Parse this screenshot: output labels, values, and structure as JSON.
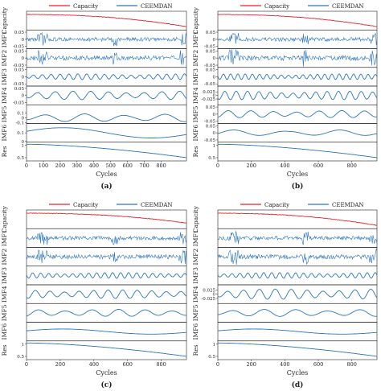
{
  "legend": {
    "capacity_label": "Capacity",
    "ceemdan_label": "CEEMDAN"
  },
  "colors": {
    "capacity": "#e4252b",
    "imf": "#2a74c0",
    "axis": "#222222",
    "grid": "#cccccc"
  },
  "chart_data": [
    {
      "type": "line",
      "panel_label": "(a)",
      "xlabel": "Cycles",
      "x_range": [
        0,
        950
      ],
      "x_ticks": [
        0,
        100,
        200,
        300,
        400,
        500,
        600,
        700,
        800
      ],
      "legend": [
        "Capacity",
        "CEEMDAN"
      ],
      "rows": [
        {
          "label": "Capacity",
          "ylim": [
            0.4,
            1.1
          ],
          "ticks": [],
          "kind": "capacity",
          "start": 1.0,
          "end": 0.5
        },
        {
          "label": "IMF1",
          "ylim": [
            -0.06,
            0.06
          ],
          "ticks": [
            0.05,
            0.0,
            -0.05
          ],
          "kind": "noise",
          "amp": 0.03
        },
        {
          "label": "IMF2",
          "ylim": [
            -0.06,
            0.06
          ],
          "ticks": [
            0.05,
            0.0,
            -0.05
          ],
          "kind": "noise",
          "amp": 0.035
        },
        {
          "label": "IMF3",
          "ylim": [
            -0.06,
            0.06
          ],
          "ticks": [
            0.05,
            0.0,
            -0.05
          ],
          "kind": "wave",
          "amp": 0.02,
          "freq": 18
        },
        {
          "label": "IMF4",
          "ylim": [
            -0.06,
            0.06
          ],
          "ticks": [
            0.05,
            0.0,
            -0.05
          ],
          "kind": "wave",
          "amp": 0.03,
          "freq": 9
        },
        {
          "label": "IMF5",
          "ylim": [
            -0.1,
            0.25
          ],
          "ticks": [
            0.1,
            0.0,
            -0.1
          ],
          "kind": "wave",
          "amp": 0.08,
          "freq": 4
        },
        {
          "label": "IMF6",
          "ylim": [
            0.0,
            0.2
          ],
          "ticks": [
            0.1,
            0.0
          ],
          "kind": "hump",
          "amp": 0.1
        },
        {
          "label": "Res",
          "ylim": [
            0.4,
            1.1
          ],
          "ticks": [
            1.0,
            0.5
          ],
          "kind": "res",
          "start": 1.05,
          "end": 0.5
        }
      ]
    },
    {
      "type": "line",
      "panel_label": "(b)",
      "xlabel": "Cycles",
      "x_range": [
        0,
        950
      ],
      "x_ticks": [
        0,
        200,
        400,
        600,
        800
      ],
      "legend": [
        "Capacity",
        "CEEMDAN"
      ],
      "rows": [
        {
          "label": "Capacity",
          "ylim": [
            0.4,
            1.1
          ],
          "ticks": [],
          "kind": "capacity",
          "start": 1.0,
          "end": 0.5
        },
        {
          "label": "IMF1",
          "ylim": [
            -0.06,
            0.06
          ],
          "ticks": [
            0.05,
            0.0,
            -0.05
          ],
          "kind": "noise",
          "amp": 0.03
        },
        {
          "label": "IMF2",
          "ylim": [
            -0.06,
            0.06
          ],
          "ticks": [
            0.05,
            0.0,
            -0.05
          ],
          "kind": "noise",
          "amp": 0.04
        },
        {
          "label": "IMF3",
          "ylim": [
            -0.06,
            0.06
          ],
          "ticks": [
            0.05,
            0.0,
            -0.05
          ],
          "kind": "wave",
          "amp": 0.02,
          "freq": 22
        },
        {
          "label": "IMF4",
          "ylim": [
            -0.06,
            0.06
          ],
          "ticks": [
            0.025,
            0.0,
            -0.025
          ],
          "kind": "wave",
          "amp": 0.03,
          "freq": 14
        },
        {
          "label": "IMF5",
          "ylim": [
            -0.06,
            0.06
          ],
          "ticks": [
            0.05,
            0.0,
            -0.05
          ],
          "kind": "wave",
          "amp": 0.025,
          "freq": 7
        },
        {
          "label": "IMF6",
          "ylim": [
            -0.06,
            0.06
          ],
          "ticks": [
            0.05,
            0.0,
            -0.05
          ],
          "kind": "wave",
          "amp": 0.02,
          "freq": 3
        },
        {
          "label": "Res",
          "ylim": [
            0.4,
            1.1
          ],
          "ticks": [
            1.0,
            0.5
          ],
          "kind": "res",
          "start": 1.05,
          "end": 0.5
        }
      ]
    },
    {
      "type": "line",
      "panel_label": "(c)",
      "xlabel": "Cycles",
      "x_range": [
        0,
        950
      ],
      "x_ticks": [
        0,
        200,
        400,
        600,
        800
      ],
      "legend": [
        "Capacity",
        "CEEMDAN"
      ],
      "rows": [
        {
          "label": "Capacity",
          "ylim": [
            0.4,
            1.1
          ],
          "ticks": [],
          "kind": "capacity",
          "start": 1.0,
          "end": 0.6
        },
        {
          "label": "IMF1",
          "ylim": [
            -0.06,
            0.06
          ],
          "ticks": [],
          "kind": "noise",
          "amp": 0.03
        },
        {
          "label": "IMF2",
          "ylim": [
            -0.06,
            0.06
          ],
          "ticks": [],
          "kind": "noise",
          "amp": 0.035
        },
        {
          "label": "IMF3",
          "ylim": [
            -0.06,
            0.06
          ],
          "ticks": [],
          "kind": "wave",
          "amp": 0.02,
          "freq": 20
        },
        {
          "label": "IMF4",
          "ylim": [
            -0.06,
            0.06
          ],
          "ticks": [],
          "kind": "wave",
          "amp": 0.03,
          "freq": 11
        },
        {
          "label": "IMF5",
          "ylim": [
            -0.06,
            0.06
          ],
          "ticks": [],
          "kind": "wave",
          "amp": 0.025,
          "freq": 6
        },
        {
          "label": "IMF6",
          "ylim": [
            -0.06,
            0.06
          ],
          "ticks": [],
          "kind": "hump",
          "amp": 0.03
        },
        {
          "label": "Res",
          "ylim": [
            0.4,
            1.1
          ],
          "ticks": [
            1.0,
            0.5
          ],
          "kind": "res",
          "start": 1.05,
          "end": 0.5
        }
      ]
    },
    {
      "type": "line",
      "panel_label": "(d)",
      "xlabel": "Cycles",
      "x_range": [
        0,
        950
      ],
      "x_ticks": [
        0,
        200,
        400,
        600,
        800
      ],
      "legend": [
        "Capacity",
        "CEEMDAN"
      ],
      "rows": [
        {
          "label": "Capacity",
          "ylim": [
            0.4,
            1.1
          ],
          "ticks": [],
          "kind": "capacity",
          "start": 1.0,
          "end": 0.5
        },
        {
          "label": "IMF1",
          "ylim": [
            -0.06,
            0.06
          ],
          "ticks": [],
          "kind": "noise",
          "amp": 0.03
        },
        {
          "label": "IMF2",
          "ylim": [
            -0.06,
            0.06
          ],
          "ticks": [],
          "kind": "noise",
          "amp": 0.035
        },
        {
          "label": "IMF3",
          "ylim": [
            -0.06,
            0.06
          ],
          "ticks": [],
          "kind": "wave",
          "amp": 0.02,
          "freq": 20
        },
        {
          "label": "IMF4",
          "ylim": [
            -0.05,
            0.05
          ],
          "ticks": [
            0.025,
            0.0,
            -0.025
          ],
          "kind": "wave",
          "amp": 0.03,
          "freq": 10
        },
        {
          "label": "IMF5",
          "ylim": [
            -0.06,
            0.06
          ],
          "ticks": [],
          "kind": "wave",
          "amp": 0.025,
          "freq": 5
        },
        {
          "label": "IMF6",
          "ylim": [
            -0.06,
            0.06
          ],
          "ticks": [],
          "kind": "hump",
          "amp": 0.03
        },
        {
          "label": "Res",
          "ylim": [
            0.4,
            1.1
          ],
          "ticks": [
            1.0,
            0.5
          ],
          "kind": "res",
          "start": 1.05,
          "end": 0.5
        }
      ]
    }
  ]
}
